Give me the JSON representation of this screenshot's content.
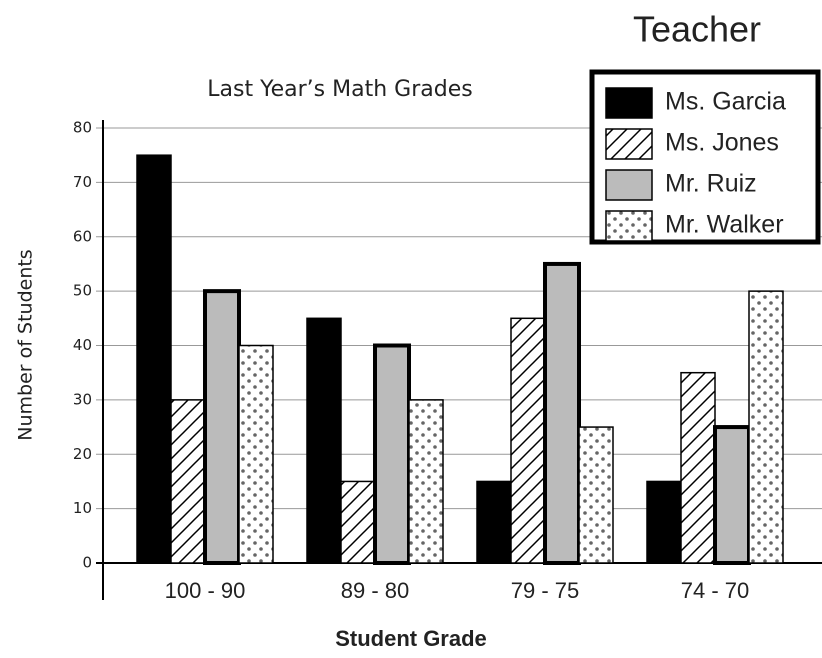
{
  "chart_data": {
    "type": "bar",
    "title": "Last Year’s Math Grades",
    "x_label": "Student Grade",
    "y_label": "Number of Students",
    "legend_title": "Teacher",
    "categories": [
      "100 - 90",
      "89 - 80",
      "79 - 75",
      "74 - 70"
    ],
    "series": [
      {
        "name": "Ms. Garcia",
        "color": "#000000",
        "pattern": "solid",
        "values": [
          75,
          45,
          15,
          15
        ]
      },
      {
        "name": "Ms. Jones",
        "color": "#ffffff",
        "pattern": "diagonal-hatch",
        "values": [
          30,
          15,
          45,
          35
        ]
      },
      {
        "name": "Mr. Ruiz",
        "color": "#bbbbbb",
        "pattern": "solid",
        "values": [
          50,
          40,
          55,
          25
        ]
      },
      {
        "name": "Mr. Walker",
        "color": "#ffffff",
        "pattern": "dots",
        "values": [
          40,
          30,
          25,
          50
        ]
      }
    ],
    "ylim": [
      0,
      80
    ],
    "yticks": [
      0,
      10,
      20,
      30,
      40,
      50,
      60,
      70,
      80
    ],
    "grid": true,
    "legend": "top-right"
  }
}
